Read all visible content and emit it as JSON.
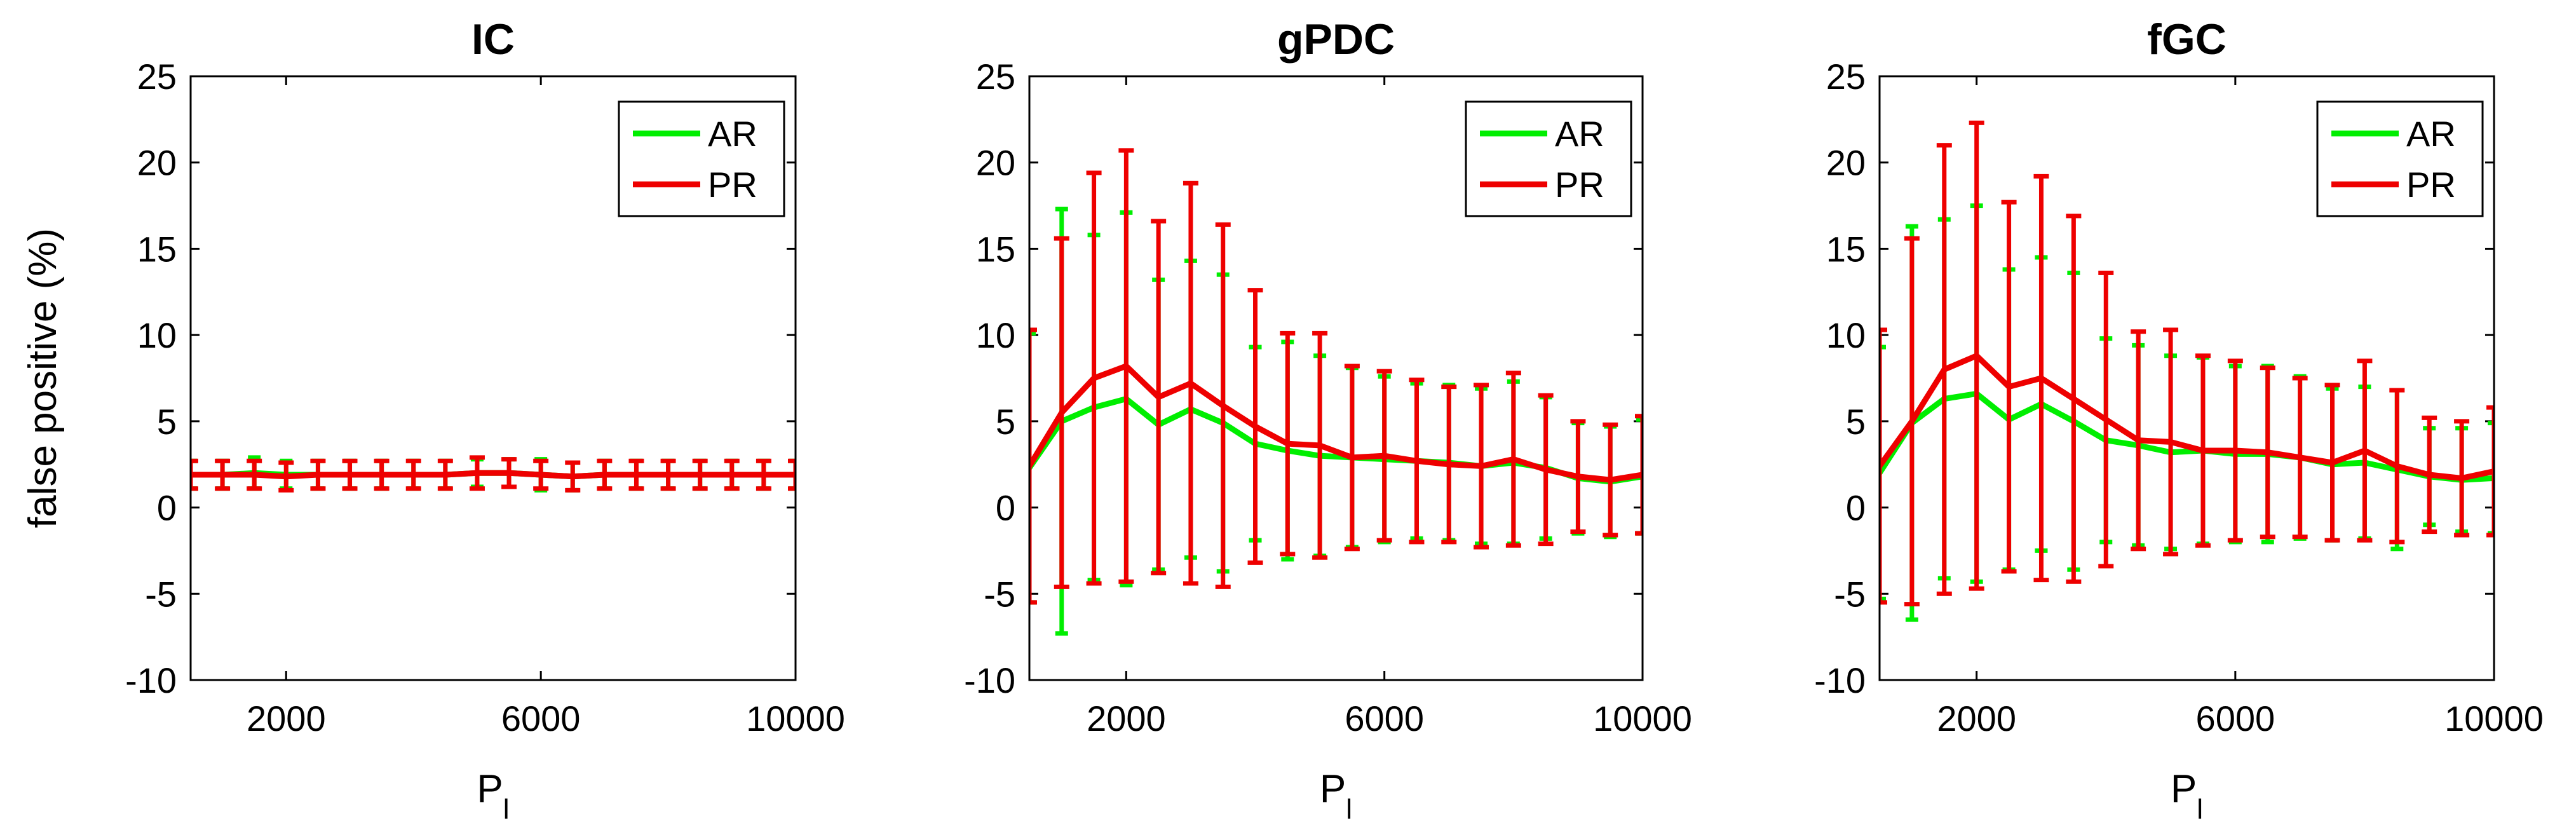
{
  "chart_data": [
    {
      "type": "line",
      "title": "IC",
      "xlabel": "P_l",
      "xlabel_main": "P",
      "xlabel_sub": "l",
      "ylabel": "false positive (%)",
      "xlim": [
        500,
        10000
      ],
      "ylim": [
        -10,
        25
      ],
      "xticks": [
        "2000",
        "6000",
        "10000"
      ],
      "yticks": [
        "-10",
        "-5",
        "0",
        "5",
        "10",
        "15",
        "20",
        "25"
      ],
      "legend_position": "top-right",
      "x": [
        500,
        1000,
        1500,
        2000,
        2500,
        3000,
        3500,
        4000,
        4500,
        5000,
        5500,
        6000,
        6500,
        7000,
        7500,
        8000,
        8500,
        9000,
        9500,
        10000
      ],
      "series": [
        {
          "name": "AR",
          "color": "#00ee00",
          "values": [
            1.9,
            1.9,
            2.0,
            1.9,
            1.9,
            1.9,
            1.9,
            1.9,
            1.9,
            2.0,
            2.0,
            1.9,
            1.8,
            1.9,
            1.9,
            1.9,
            1.9,
            1.9,
            1.9,
            1.9
          ],
          "err": [
            0.8,
            0.8,
            0.9,
            0.8,
            0.8,
            0.8,
            0.8,
            0.8,
            0.8,
            0.8,
            0.8,
            0.9,
            0.8,
            0.8,
            0.8,
            0.8,
            0.8,
            0.8,
            0.8,
            0.8
          ]
        },
        {
          "name": "PR",
          "color": "#ee0000",
          "values": [
            1.9,
            1.9,
            1.9,
            1.8,
            1.9,
            1.9,
            1.9,
            1.9,
            1.9,
            2.0,
            2.0,
            1.9,
            1.8,
            1.9,
            1.9,
            1.9,
            1.9,
            1.9,
            1.9,
            1.9
          ],
          "err": [
            0.8,
            0.8,
            0.8,
            0.8,
            0.8,
            0.8,
            0.8,
            0.8,
            0.8,
            0.9,
            0.8,
            0.8,
            0.8,
            0.8,
            0.8,
            0.8,
            0.8,
            0.8,
            0.8,
            0.8
          ]
        }
      ]
    },
    {
      "type": "line",
      "title": "gPDC",
      "xlabel": "P_l",
      "xlabel_main": "P",
      "xlabel_sub": "l",
      "ylabel": "",
      "xlim": [
        500,
        10000
      ],
      "ylim": [
        -10,
        25
      ],
      "xticks": [
        "2000",
        "6000",
        "10000"
      ],
      "yticks": [
        "-10",
        "-5",
        "0",
        "5",
        "10",
        "15",
        "20",
        "25"
      ],
      "legend_position": "top-right",
      "x": [
        500,
        1000,
        1500,
        2000,
        2500,
        3000,
        3500,
        4000,
        4500,
        5000,
        5500,
        6000,
        6500,
        7000,
        7500,
        8000,
        8500,
        9000,
        9500,
        10000
      ],
      "series": [
        {
          "name": "AR",
          "color": "#00ee00",
          "values": [
            2.3,
            5.0,
            5.8,
            6.3,
            4.8,
            5.7,
            4.9,
            3.7,
            3.3,
            3.0,
            2.9,
            2.8,
            2.7,
            2.6,
            2.4,
            2.6,
            2.3,
            1.7,
            1.5,
            1.8
          ],
          "err": [
            7.8,
            12.3,
            10.0,
            10.8,
            8.4,
            8.6,
            8.6,
            5.6,
            6.3,
            5.8,
            5.2,
            4.8,
            4.5,
            4.5,
            4.5,
            4.7,
            4.1,
            3.2,
            3.2,
            3.3
          ]
        },
        {
          "name": "PR",
          "color": "#ee0000",
          "values": [
            2.4,
            5.5,
            7.5,
            8.2,
            6.4,
            7.2,
            5.9,
            4.7,
            3.7,
            3.6,
            2.9,
            3.0,
            2.7,
            2.5,
            2.4,
            2.8,
            2.2,
            1.8,
            1.6,
            1.9
          ],
          "err": [
            7.9,
            10.1,
            11.9,
            12.5,
            10.2,
            11.6,
            10.5,
            7.9,
            6.4,
            6.5,
            5.3,
            4.9,
            4.7,
            4.5,
            4.7,
            5.0,
            4.3,
            3.2,
            3.2,
            3.4
          ]
        }
      ]
    },
    {
      "type": "line",
      "title": "fGC",
      "xlabel": "P_l",
      "xlabel_main": "P",
      "xlabel_sub": "l",
      "ylabel": "",
      "xlim": [
        500,
        10000
      ],
      "ylim": [
        -10,
        25
      ],
      "xticks": [
        "2000",
        "6000",
        "10000"
      ],
      "yticks": [
        "-10",
        "-5",
        "0",
        "5",
        "10",
        "15",
        "20",
        "25"
      ],
      "legend_position": "top-right",
      "x": [
        500,
        1000,
        1500,
        2000,
        2500,
        3000,
        3500,
        4000,
        4500,
        5000,
        5500,
        6000,
        6500,
        7000,
        7500,
        8000,
        8500,
        9000,
        9500,
        10000
      ],
      "series": [
        {
          "name": "AR",
          "color": "#00ee00",
          "values": [
            2.0,
            4.9,
            6.3,
            6.6,
            5.1,
            6.0,
            5.0,
            3.9,
            3.6,
            3.2,
            3.3,
            3.1,
            3.1,
            2.9,
            2.5,
            2.6,
            2.2,
            1.8,
            1.6,
            1.7
          ],
          "err": [
            7.3,
            11.4,
            10.4,
            10.9,
            8.7,
            8.5,
            8.6,
            5.9,
            5.8,
            5.6,
            5.4,
            5.1,
            5.1,
            4.7,
            4.4,
            4.4,
            4.6,
            2.8,
            3.0,
            3.2
          ]
        },
        {
          "name": "PR",
          "color": "#ee0000",
          "values": [
            2.4,
            5.0,
            8.0,
            8.8,
            7.0,
            7.5,
            6.3,
            5.1,
            3.9,
            3.8,
            3.3,
            3.3,
            3.2,
            2.9,
            2.6,
            3.3,
            2.4,
            1.9,
            1.7,
            2.1
          ],
          "err": [
            7.9,
            10.6,
            13.0,
            13.5,
            10.7,
            11.7,
            10.6,
            8.5,
            6.3,
            6.5,
            5.5,
            5.2,
            4.9,
            4.6,
            4.5,
            5.2,
            4.4,
            3.3,
            3.3,
            3.7
          ]
        }
      ]
    }
  ]
}
